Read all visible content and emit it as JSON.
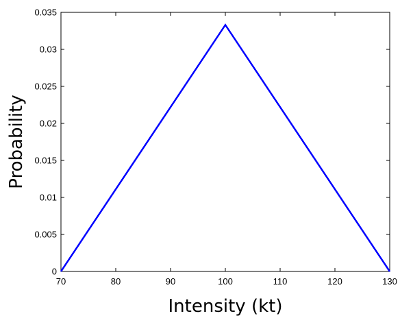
{
  "chart_data": {
    "type": "line",
    "title": "",
    "xlabel": "Intensity (kt)",
    "ylabel": "Probability",
    "xlim": [
      70,
      130
    ],
    "ylim": [
      0,
      0.035
    ],
    "grid": false,
    "legend": "none",
    "x_ticks": [
      70,
      80,
      90,
      100,
      110,
      120,
      130
    ],
    "x_tick_labels": [
      "70",
      "80",
      "90",
      "100",
      "110",
      "120",
      "130"
    ],
    "y_ticks": [
      0,
      0.005,
      0.01,
      0.015,
      0.02,
      0.025,
      0.03,
      0.035
    ],
    "y_tick_labels": [
      "0",
      "0.005",
      "0.01",
      "0.015",
      "0.02",
      "0.025",
      "0.03",
      "0.035"
    ],
    "series": [
      {
        "x": [
          70,
          100,
          130
        ],
        "y": [
          0,
          0.0333,
          0
        ],
        "color": "#0000ff"
      }
    ]
  }
}
